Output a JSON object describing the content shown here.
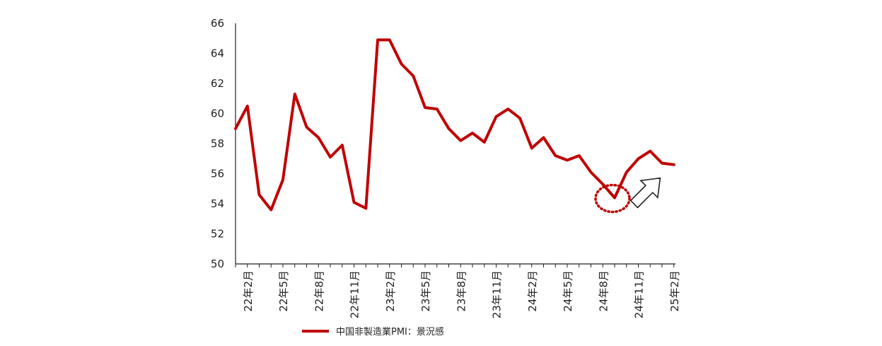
{
  "chart_data": {
    "type": "line",
    "title": "",
    "xlabel": "",
    "ylabel": "",
    "ylim": [
      50,
      66
    ],
    "yticks": [
      50,
      52,
      54,
      56,
      58,
      60,
      62,
      64,
      66
    ],
    "x_tick_labels": [
      "22年2月",
      "22年5月",
      "22年8月",
      "22年11月",
      "23年2月",
      "23年5月",
      "23年8月",
      "23年11月",
      "24年2月",
      "24年5月",
      "24年8月",
      "24年11月",
      "25年2月"
    ],
    "x": [
      "22年1月",
      "22年2月",
      "22年3月",
      "22年4月",
      "22年5月",
      "22年6月",
      "22年7月",
      "22年8月",
      "22年9月",
      "22年10月",
      "22年11月",
      "22年12月",
      "23年1月",
      "23年2月",
      "23年3月",
      "23年4月",
      "23年5月",
      "23年6月",
      "23年7月",
      "23年8月",
      "23年9月",
      "23年10月",
      "23年11月",
      "23年12月",
      "24年1月",
      "24年2月",
      "24年3月",
      "24年4月",
      "24年5月",
      "24年6月",
      "24年7月",
      "24年8月",
      "24年9月",
      "24年10月",
      "24年11月",
      "24年12月",
      "25年1月",
      "25年2月"
    ],
    "series": [
      {
        "name": "中国非製造業PMI：景況感",
        "color": "#c00000",
        "values": [
          59.0,
          60.5,
          54.6,
          53.6,
          55.6,
          61.3,
          59.1,
          58.4,
          57.1,
          57.9,
          54.1,
          53.7,
          64.9,
          64.9,
          63.3,
          62.5,
          60.4,
          60.3,
          59.0,
          58.2,
          58.7,
          58.1,
          59.8,
          60.3,
          59.7,
          57.7,
          58.4,
          57.2,
          56.9,
          57.2,
          56.1,
          55.3,
          54.4,
          56.1,
          57.0,
          57.5,
          56.7,
          56.6
        ]
      }
    ],
    "annotations": [
      {
        "kind": "dotted-circle",
        "target": "24年9月",
        "color": "#c00000"
      },
      {
        "kind": "up-right-arrow",
        "icon": "arrow-up-right-icon"
      }
    ],
    "legend_position": "bottom",
    "grid": false
  }
}
